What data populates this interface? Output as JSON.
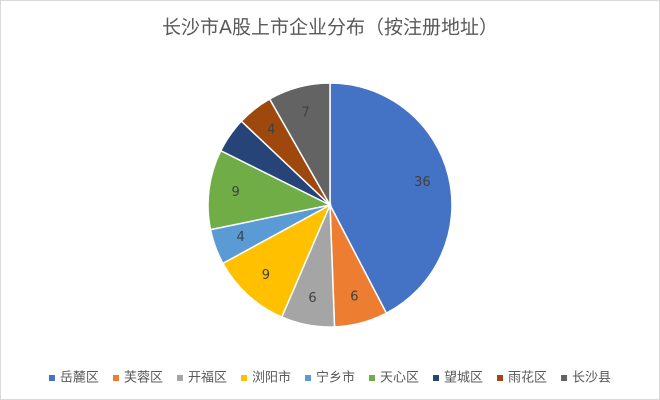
{
  "chart_data": {
    "type": "pie",
    "title": "长沙市A股上市企业分布（按注册地址）",
    "categories": [
      "岳麓区",
      "芙蓉区",
      "开福区",
      "浏阳市",
      "宁乡市",
      "天心区",
      "望城区",
      "雨花区",
      "长沙县"
    ],
    "values": [
      36,
      6,
      6,
      9,
      4,
      9,
      4,
      4,
      7
    ],
    "value_labels": [
      "36",
      "6",
      "6",
      "9",
      "4",
      "9",
      null,
      "4",
      "7"
    ],
    "colors": [
      "#4472c4",
      "#ed7d31",
      "#a5a5a5",
      "#ffc000",
      "#5b9bd5",
      "#70ad47",
      "#264478",
      "#9e480e",
      "#636363"
    ],
    "legend": "bottom"
  }
}
